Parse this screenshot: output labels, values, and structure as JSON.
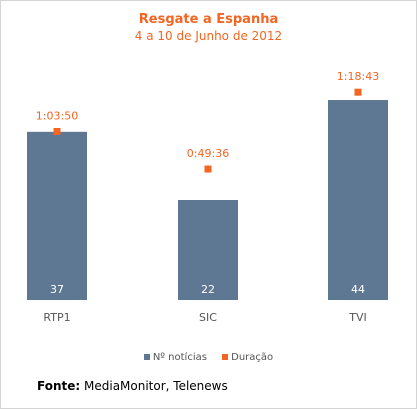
{
  "title": "Resgate a Espanha",
  "subtitle": "4 a 10 de Junho de 2012",
  "source": {
    "label": "Fonte:",
    "text": "MediaMonitor, Telenews"
  },
  "colors": {
    "bar": "#5e7792",
    "marker": "#f26522",
    "axis_text": "#555555",
    "bar_label": "#ffffff"
  },
  "chart_data": {
    "type": "bar",
    "categories": [
      "RTP1",
      "SIC",
      "TVI"
    ],
    "series": [
      {
        "name": "Nº notícias",
        "kind": "bar",
        "values": [
          37,
          22,
          44
        ]
      },
      {
        "name": "Duração",
        "kind": "marker",
        "values": [
          "1:03:50",
          "0:49:36",
          "1:18:43"
        ],
        "seconds": [
          3830,
          2976,
          4723
        ]
      }
    ],
    "legend": "bottom-center"
  }
}
